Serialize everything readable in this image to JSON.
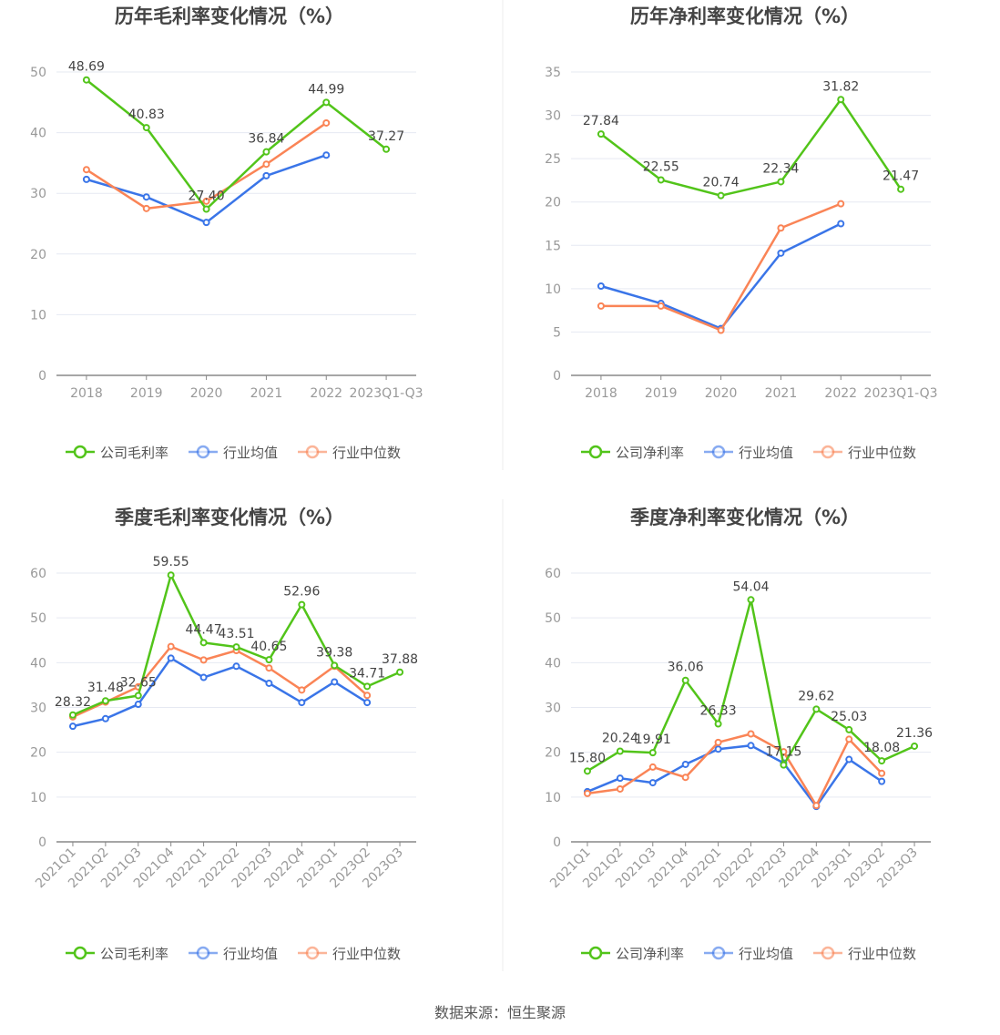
{
  "source": "数据来源：恒生聚源",
  "colors": {
    "company": "#52c41a",
    "avg": "#3a75e8",
    "median": "#fa8456"
  },
  "chart_data": [
    {
      "type": "line",
      "title": "历年毛利率变化情况（%）",
      "categories": [
        "2018",
        "2019",
        "2020",
        "2021",
        "2022",
        "2023Q1-Q3"
      ],
      "ylim": [
        0,
        50
      ],
      "yticks": [
        0,
        10,
        20,
        30,
        40,
        50
      ],
      "legend_position": "bottom",
      "series": [
        {
          "name": "公司毛利率",
          "key": "company",
          "values": [
            48.69,
            40.83,
            27.4,
            36.84,
            44.99,
            37.27
          ],
          "labels": [
            "48.69",
            "40.83",
            "27.40",
            "36.84",
            "44.99",
            "37.27"
          ]
        },
        {
          "name": "行业均值",
          "key": "avg",
          "values": [
            32.3,
            29.4,
            25.2,
            32.9,
            36.3,
            null
          ]
        },
        {
          "name": "行业中位数",
          "key": "median",
          "values": [
            33.9,
            27.5,
            28.7,
            34.8,
            41.6,
            null
          ]
        }
      ]
    },
    {
      "type": "line",
      "title": "历年净利率变化情况（%）",
      "categories": [
        "2018",
        "2019",
        "2020",
        "2021",
        "2022",
        "2023Q1-Q3"
      ],
      "ylim": [
        0,
        35
      ],
      "yticks": [
        0,
        5,
        10,
        15,
        20,
        25,
        30,
        35
      ],
      "legend_position": "bottom",
      "series": [
        {
          "name": "公司净利率",
          "key": "company",
          "values": [
            27.84,
            22.55,
            20.74,
            22.34,
            31.82,
            21.47
          ],
          "labels": [
            "27.84",
            "22.55",
            "20.74",
            "22.34",
            "31.82",
            "21.47"
          ]
        },
        {
          "name": "行业均值",
          "key": "avg",
          "values": [
            10.3,
            8.3,
            5.4,
            14.1,
            17.5,
            null
          ]
        },
        {
          "name": "行业中位数",
          "key": "median",
          "values": [
            8.0,
            8.0,
            5.2,
            17.0,
            19.8,
            null
          ]
        }
      ]
    },
    {
      "type": "line",
      "title": "季度毛利率变化情况（%）",
      "categories": [
        "2021Q1",
        "2021Q2",
        "2021Q3",
        "2021Q4",
        "2022Q1",
        "2022Q2",
        "2022Q3",
        "2022Q4",
        "2023Q1",
        "2023Q2",
        "2023Q3"
      ],
      "ylim": [
        0,
        60
      ],
      "yticks": [
        0,
        10,
        20,
        30,
        40,
        50,
        60
      ],
      "legend_position": "bottom",
      "series": [
        {
          "name": "公司毛利率",
          "key": "company",
          "values": [
            28.32,
            31.48,
            32.65,
            59.55,
            44.47,
            43.51,
            40.65,
            52.96,
            39.38,
            34.71,
            37.88
          ],
          "labels": [
            "28.32",
            "31.48",
            "32.65",
            "59.55",
            "44.47",
            "43.51",
            "40.65",
            "52.96",
            "39.38",
            "34.71",
            "37.88"
          ]
        },
        {
          "name": "行业均值",
          "key": "avg",
          "values": [
            25.8,
            27.5,
            30.7,
            41.0,
            36.7,
            39.2,
            35.4,
            31.1,
            35.7,
            31.1,
            null
          ]
        },
        {
          "name": "行业中位数",
          "key": "median",
          "values": [
            27.9,
            31.2,
            34.6,
            43.6,
            40.6,
            42.7,
            38.8,
            33.9,
            39.2,
            32.7,
            null
          ]
        }
      ]
    },
    {
      "type": "line",
      "title": "季度净利率变化情况（%）",
      "categories": [
        "2021Q1",
        "2021Q2",
        "2021Q3",
        "2021Q4",
        "2022Q1",
        "2022Q2",
        "2022Q3",
        "2022Q4",
        "2023Q1",
        "2023Q2",
        "2023Q3"
      ],
      "ylim": [
        0,
        60
      ],
      "yticks": [
        0,
        10,
        20,
        30,
        40,
        50,
        60
      ],
      "legend_position": "bottom",
      "series": [
        {
          "name": "公司净利率",
          "key": "company",
          "values": [
            15.8,
            20.24,
            19.91,
            36.06,
            26.33,
            54.04,
            17.15,
            29.62,
            25.03,
            18.08,
            21.36
          ],
          "labels": [
            "15.80",
            "20.24",
            "19.91",
            "36.06",
            "26.33",
            "54.04",
            "17.15",
            "29.62",
            "25.03",
            "18.08",
            "21.36"
          ]
        },
        {
          "name": "行业均值",
          "key": "avg",
          "values": [
            11.2,
            14.2,
            13.2,
            17.3,
            20.7,
            21.5,
            17.6,
            7.9,
            18.4,
            13.5,
            null
          ]
        },
        {
          "name": "行业中位数",
          "key": "median",
          "values": [
            10.8,
            11.8,
            16.7,
            14.4,
            22.2,
            24.1,
            20.1,
            8.1,
            22.9,
            15.3,
            null
          ]
        }
      ]
    }
  ]
}
